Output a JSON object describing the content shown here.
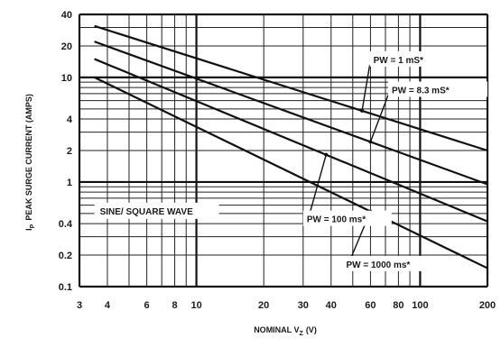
{
  "chart_data": {
    "type": "line",
    "title": "",
    "xlabel": "NOMINAL V",
    "xlabel_sub": "Z",
    "xlabel_unit": "(V)",
    "ylabel": "I",
    "ylabel_sub": "P",
    "ylabel_rest": "PEAK SURGE CURRENT (AMPS)",
    "x_scale": "log",
    "y_scale": "log",
    "xlim": [
      3,
      200
    ],
    "ylim": [
      0.1,
      40
    ],
    "grid": true,
    "x_ticks": [
      {
        "value": 3,
        "label": "3"
      },
      {
        "value": 4,
        "label": "4"
      },
      {
        "value": 6,
        "label": "6"
      },
      {
        "value": 8,
        "label": "8"
      },
      {
        "value": 10,
        "label": "10"
      },
      {
        "value": 20,
        "label": "20"
      },
      {
        "value": 30,
        "label": "30"
      },
      {
        "value": 40,
        "label": "40"
      },
      {
        "value": 60,
        "label": "60"
      },
      {
        "value": 80,
        "label": "80"
      },
      {
        "value": 100,
        "label": "100"
      },
      {
        "value": 200,
        "label": "200"
      }
    ],
    "y_ticks": [
      {
        "value": 0.1,
        "label": "0.1"
      },
      {
        "value": 0.2,
        "label": "0.2"
      },
      {
        "value": 0.4,
        "label": "0.4"
      },
      {
        "value": 1,
        "label": "1"
      },
      {
        "value": 2,
        "label": "2"
      },
      {
        "value": 4,
        "label": "4"
      },
      {
        "value": 10,
        "label": "10"
      },
      {
        "value": 20,
        "label": "20"
      },
      {
        "value": 40,
        "label": "40"
      }
    ],
    "series": [
      {
        "name": "PW = 1 mS*",
        "x": [
          3.5,
          200
        ],
        "y": [
          31,
          2
        ]
      },
      {
        "name": "PW = 8.3 mS*",
        "x": [
          3.5,
          200
        ],
        "y": [
          22,
          0.95
        ]
      },
      {
        "name": "PW = 100 ms*",
        "x": [
          3.5,
          200
        ],
        "y": [
          15,
          0.42
        ]
      },
      {
        "name": "PW = 1000 ms*",
        "x": [
          3.5,
          200
        ],
        "y": [
          10,
          0.15
        ]
      }
    ],
    "annotations": [
      {
        "text": "PW = 1 mS*",
        "series": 0
      },
      {
        "text": "PW = 8.3 mS*",
        "series": 1
      },
      {
        "text": "PW = 100 ms*",
        "series": 2
      },
      {
        "text": "PW = 1000 ms*",
        "series": 3
      },
      {
        "text": "SINE/ SQUARE WAVE",
        "series": null
      }
    ]
  }
}
